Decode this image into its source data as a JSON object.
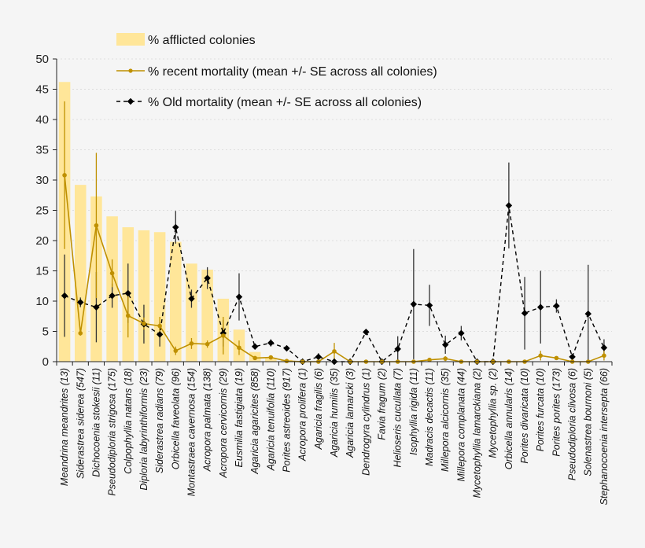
{
  "chart_data": {
    "type": "bar",
    "title": "",
    "xlabel": "",
    "ylabel": "",
    "ylim": [
      0,
      50
    ],
    "yticks": [
      0,
      5,
      10,
      15,
      20,
      25,
      30,
      35,
      40,
      45,
      50
    ],
    "grid": true,
    "legend_position": "top-left",
    "categories": [
      "Meandrina meandrites  (13)",
      "Siderastrea siderea  (547)",
      "Dichocoenia stokesii  (11)",
      "Pseudodiploria strigosa  (175)",
      "Colpophyllia natans  (18)",
      "Diploria labyrinthiformis  (23)",
      "Siderastrea radians  (79)",
      "Orbicella faveolata  (96)",
      "Montastraea cavernosa  (154)",
      "Acropora palmata  (138)",
      "Acropora cervicornis  (29)",
      "Eusmilia fastigiata  (19)",
      "Agaricia agaricites  (858)",
      "Agaricia tenuifolia  (110)",
      "Porites astreoides  (917)",
      "Acropora prolifera  (1)",
      "Agaricia fragilis  (6)",
      "Agaricia humilis  (35)",
      "Agaricia lamarcki  (3)",
      "Dendrogyra cylindrus  (1)",
      "Favia fragum  (2)",
      "Helioseris cucullata  (7)",
      "Isophyllia rigida  (11)",
      "Madracis decactis  (11)",
      "Millepora alcicornis  (35)",
      "Millepora complanata  (44)",
      "Mycetophyllia lamarckiana  (2)",
      "Mycetophyllia sp.  (2)",
      "Orbicella annularis  (14)",
      "Porites divaricata  (10)",
      "Porites furcata  (10)",
      "Porites porites  (173)",
      "Pseudodiploria clivosa  (6)",
      "Solenastrea bournoni  (5)",
      "Stephanocoenia intersepta  (66)"
    ],
    "series": [
      {
        "name": "% afflicted colonies",
        "type": "bar",
        "color": "#ffe699",
        "values": [
          46.2,
          29.2,
          27.3,
          24.0,
          22.2,
          21.7,
          21.4,
          19.8,
          16.2,
          15.2,
          10.4,
          5.3,
          1.6,
          0.6,
          0.3,
          0,
          0,
          0,
          0,
          0,
          0,
          0,
          0,
          0,
          0,
          0,
          0,
          0,
          0,
          0,
          0,
          0,
          0,
          0,
          0
        ]
      },
      {
        "name": "% recent mortality (mean +/- SE across all colonies)",
        "type": "line",
        "color": "#bf9000",
        "values": [
          30.8,
          4.7,
          22.5,
          14.6,
          7.6,
          6.3,
          5.9,
          1.8,
          3.0,
          2.9,
          4.3,
          2.3,
          0.6,
          0.7,
          0.1,
          0,
          0,
          1.7,
          0,
          0,
          0,
          0,
          0,
          0.3,
          0.5,
          0,
          0,
          0,
          0,
          0,
          1.0,
          0.6,
          0,
          0,
          1.0
        ],
        "se": [
          12.2,
          0.4,
          12.0,
          2.3,
          3.6,
          1.0,
          1.5,
          0.7,
          0.9,
          0.6,
          3.1,
          1.2,
          0.2,
          0.3,
          0.1,
          0,
          0,
          1.4,
          0,
          0,
          0,
          0,
          0,
          0.2,
          0.4,
          0,
          0,
          0,
          0,
          0,
          0.8,
          0.3,
          0,
          0,
          0.8
        ]
      },
      {
        "name": "% Old mortality (mean +/- SE across all colonies)",
        "type": "line",
        "color": "#000000",
        "values": [
          10.9,
          9.8,
          9.0,
          10.9,
          11.3,
          6.2,
          4.5,
          22.2,
          10.4,
          13.8,
          4.7,
          10.7,
          2.5,
          3.1,
          2.2,
          0,
          0.8,
          0,
          0,
          4.9,
          0,
          2.1,
          9.5,
          9.3,
          2.8,
          4.7,
          0,
          0,
          25.8,
          8.0,
          9.0,
          9.2,
          0.8,
          7.9,
          2.3
        ],
        "se": [
          6.8,
          0.8,
          5.8,
          2.0,
          4.9,
          3.2,
          2.0,
          2.7,
          1.5,
          1.8,
          2.2,
          3.9,
          0.3,
          0.6,
          0.3,
          0,
          0.6,
          0,
          0,
          0.2,
          0,
          2.1,
          9.1,
          3.4,
          1.5,
          1.2,
          0,
          0,
          7.1,
          6.0,
          6.0,
          1.1,
          0.4,
          8.1,
          1.4
        ]
      }
    ]
  }
}
